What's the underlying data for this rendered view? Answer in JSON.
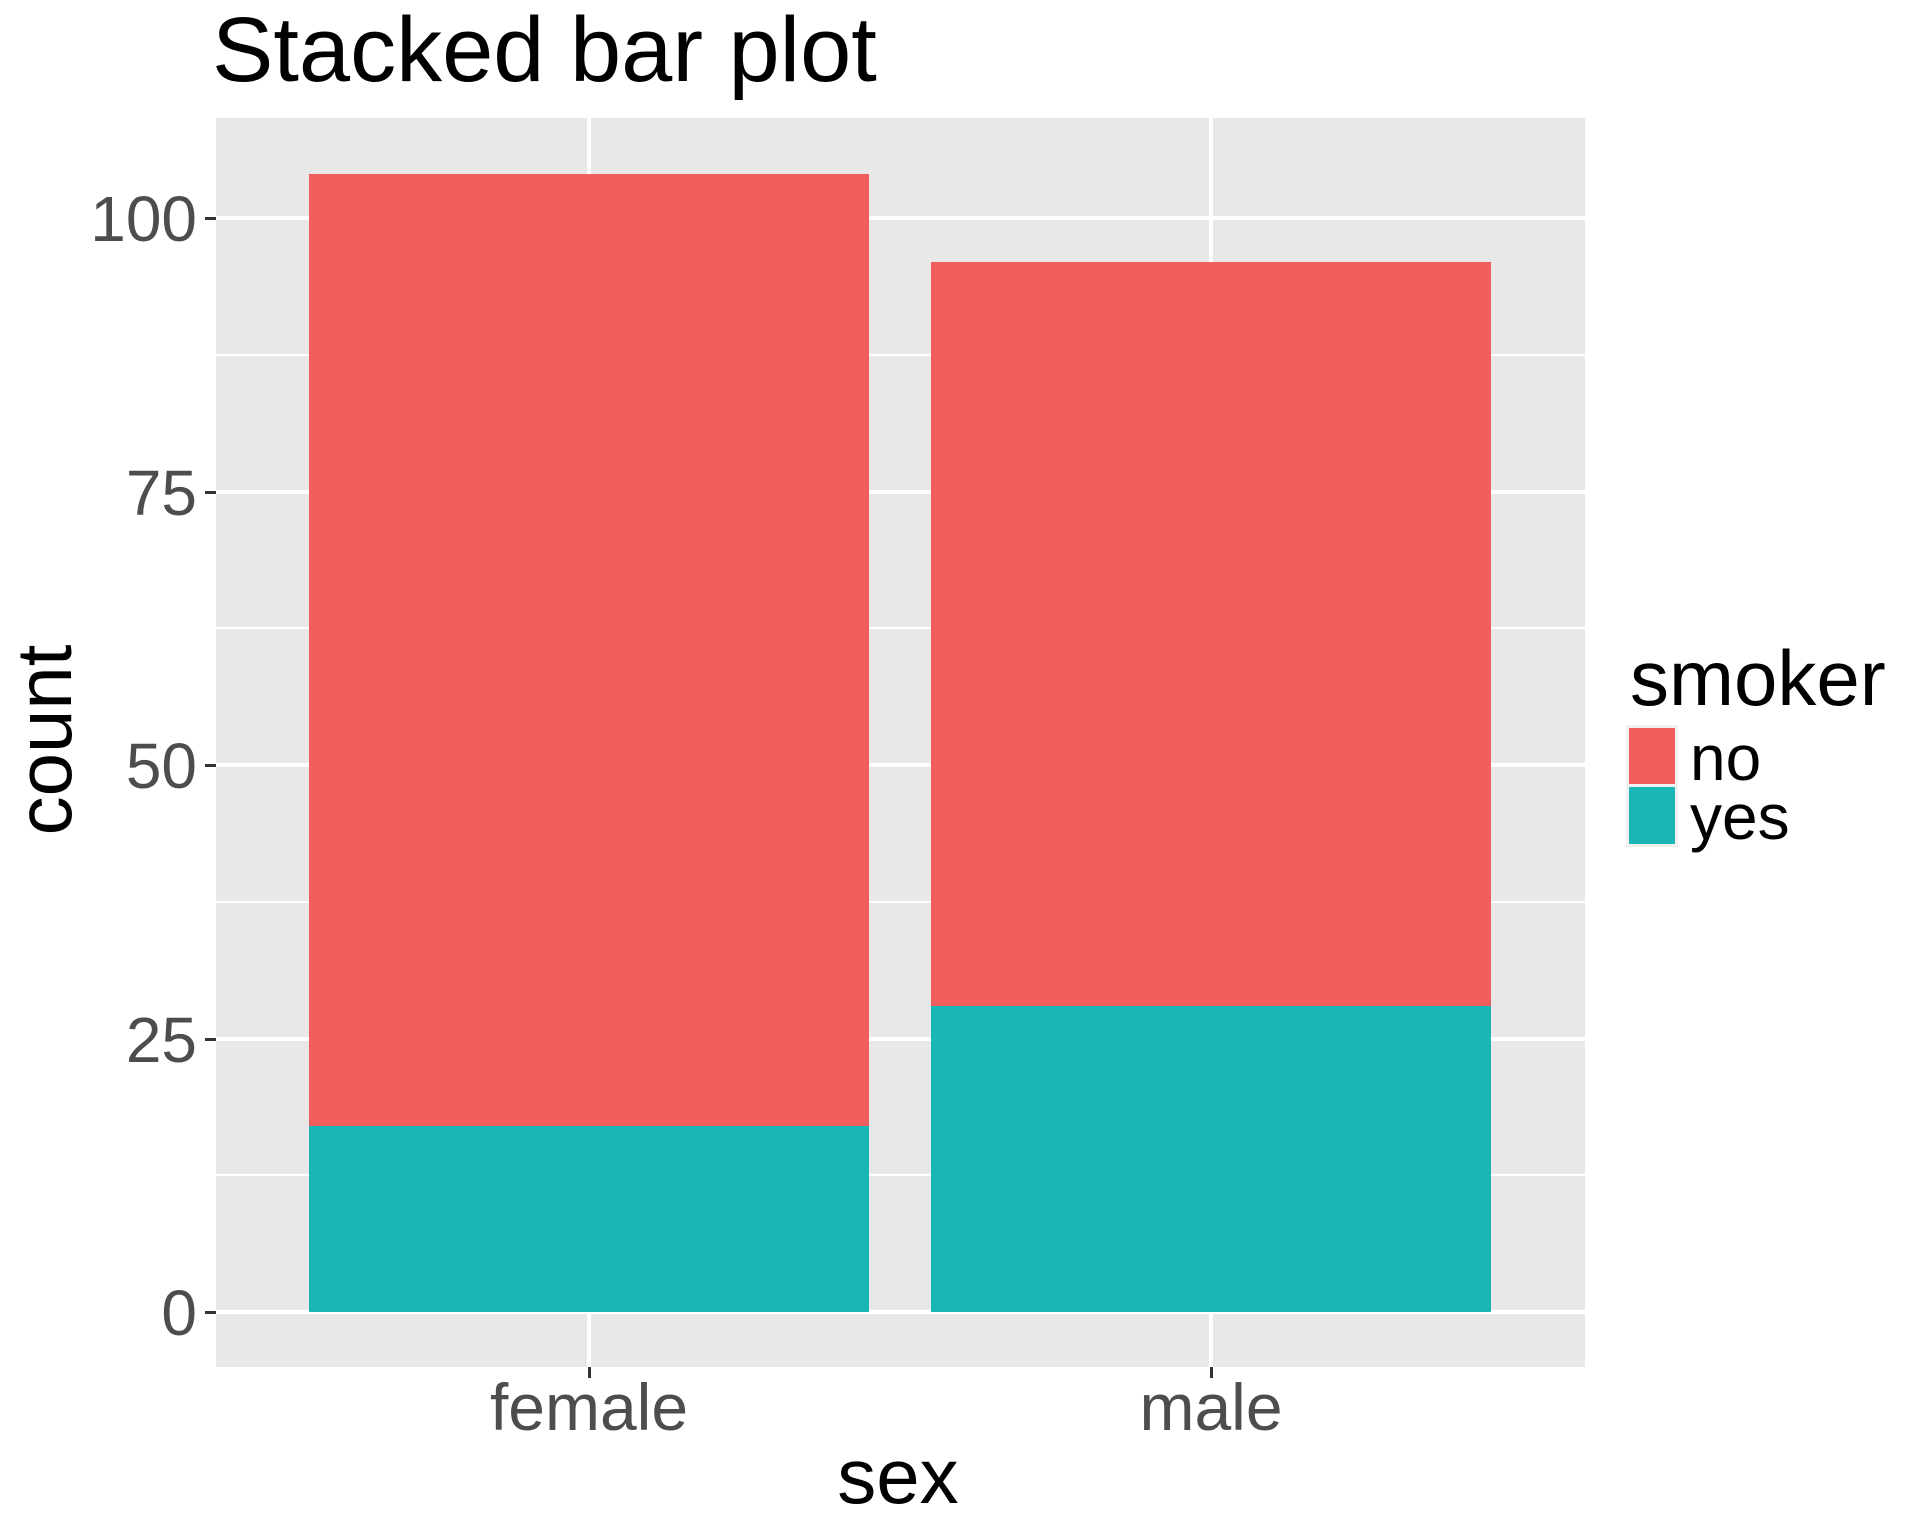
{
  "chart_data": {
    "type": "bar",
    "stacked": true,
    "title": "Stacked bar plot",
    "xlabel": "sex",
    "ylabel": "count",
    "categories": [
      "female",
      "male"
    ],
    "series": [
      {
        "name": "no",
        "color": "#F25E5B",
        "values": [
          87,
          68
        ]
      },
      {
        "name": "yes",
        "color": "#1AB5B5",
        "values": [
          17,
          28
        ]
      }
    ],
    "stack_totals": [
      104,
      96
    ],
    "stack_order_bottom_to_top": [
      "yes",
      "no"
    ],
    "yticks": [
      0,
      25,
      50,
      75,
      100
    ],
    "ytick_labels": [
      "0",
      "25",
      "50",
      "75",
      "100"
    ],
    "ylim": [
      -5.2,
      109.2
    ],
    "grid": {
      "horizontal_major": true,
      "horizontal_minor": true,
      "vertical_major": true
    },
    "legend": {
      "title": "smoker",
      "position": "right",
      "entries": [
        "no",
        "yes"
      ]
    }
  },
  "colors": {
    "background": "#FFFFFF",
    "panel_background": "#E8E8E8",
    "gridline": "#FFFFFF",
    "tick_mark": "#333333",
    "tick_label": "#4D4D4D",
    "text": "#000000"
  }
}
